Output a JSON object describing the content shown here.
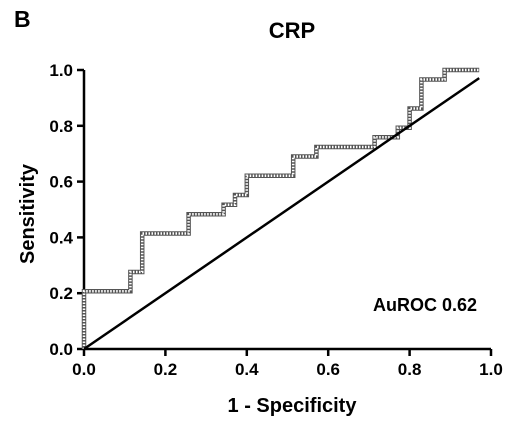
{
  "panel_label": "B",
  "chart_data": {
    "type": "line",
    "title": "CRP",
    "xlabel": "1 - Specificity",
    "ylabel": "Sensitivity",
    "xlim": [
      0.0,
      1.0
    ],
    "ylim": [
      0.0,
      1.0
    ],
    "x_ticks": [
      "0.0",
      "0.2",
      "0.4",
      "0.6",
      "0.8",
      "1.0"
    ],
    "y_ticks": [
      "0.0",
      "0.2",
      "0.4",
      "0.6",
      "0.8",
      "1.0"
    ],
    "grid": false,
    "annotation": "AuROC 0.62",
    "series": [
      {
        "kind": "roc-step",
        "x": [
          0.0,
          0.0,
          0.114,
          0.114,
          0.143,
          0.143,
          0.257,
          0.257,
          0.343,
          0.343,
          0.371,
          0.371,
          0.4,
          0.4,
          0.514,
          0.514,
          0.571,
          0.571,
          0.714,
          0.714,
          0.771,
          0.771,
          0.8,
          0.8,
          0.829,
          0.829,
          0.857,
          0.857,
          0.886,
          0.886,
          0.971
        ],
        "y": [
          0.0,
          0.207,
          0.207,
          0.276,
          0.276,
          0.414,
          0.414,
          0.483,
          0.483,
          0.517,
          0.517,
          0.552,
          0.552,
          0.621,
          0.621,
          0.69,
          0.69,
          0.724,
          0.724,
          0.759,
          0.759,
          0.793,
          0.793,
          0.862,
          0.862,
          0.966,
          0.966,
          0.966,
          0.966,
          1.0,
          1.0
        ]
      },
      {
        "kind": "reference",
        "x": [
          0.0,
          0.971
        ],
        "y": [
          0.0,
          0.971
        ]
      }
    ]
  }
}
